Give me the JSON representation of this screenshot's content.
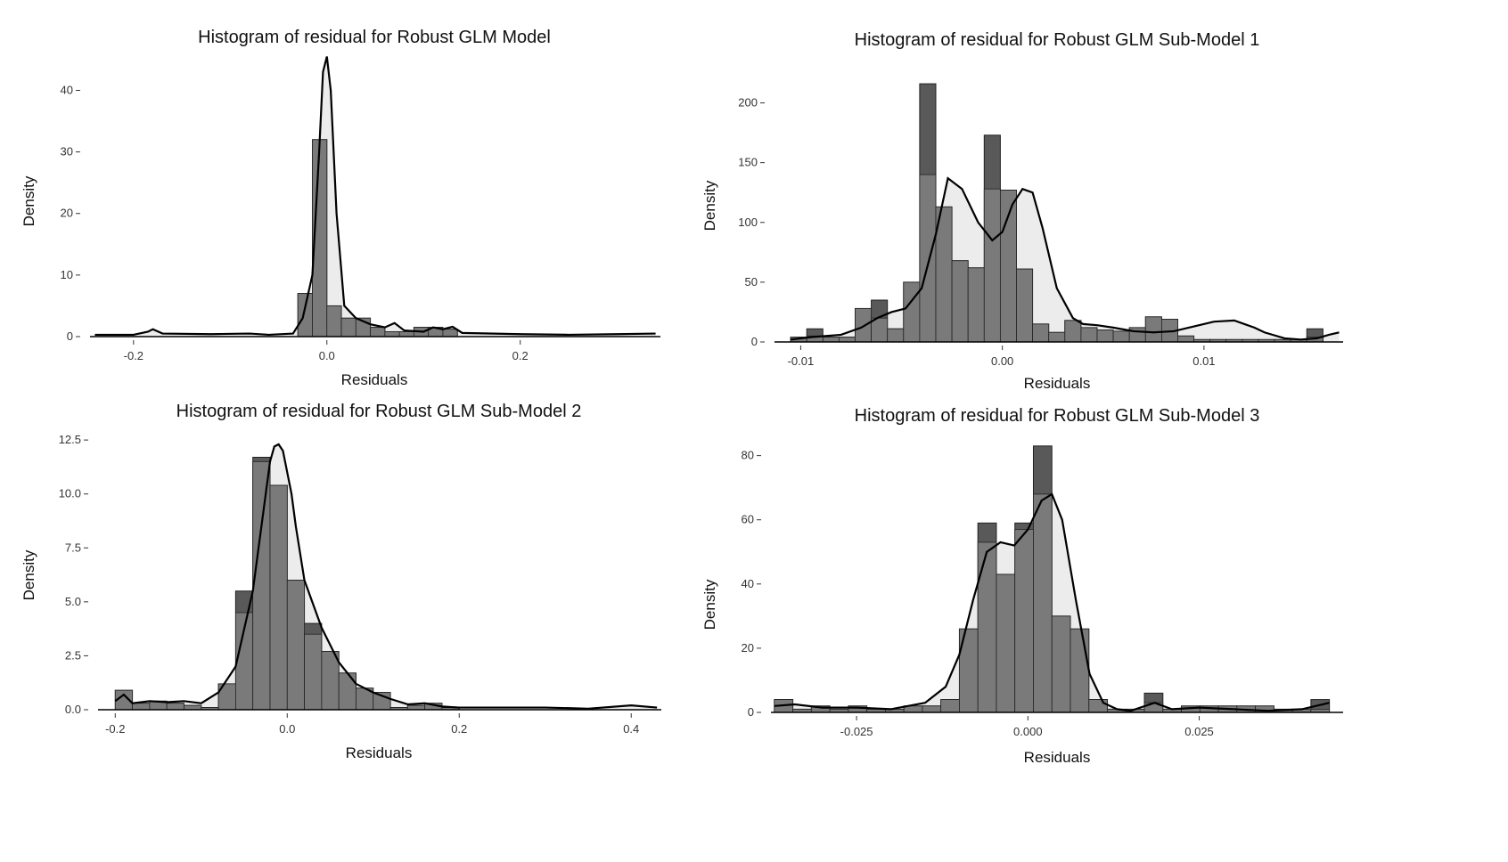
{
  "chart_data": [
    {
      "type": "bar",
      "title": "Histogram of residual for Robust GLM Model",
      "xlabel": "Residuals",
      "ylabel": "Density",
      "xlim": [
        -0.245,
        0.345
      ],
      "ylim": [
        0,
        46
      ],
      "xticks": [
        -0.2,
        0.0,
        0.2
      ],
      "xtick_labels": [
        "-0.2",
        "0.0",
        "0.2"
      ],
      "yticks": [
        0,
        10,
        20,
        30,
        40
      ],
      "ytick_labels": [
        "0",
        "10",
        "20",
        "30",
        "40"
      ],
      "grid": false,
      "bins": {
        "edges": [
          -0.03,
          -0.015,
          0.0,
          0.015,
          0.03,
          0.045,
          0.06,
          0.075,
          0.09,
          0.105,
          0.12,
          0.135
        ],
        "outer": [
          7,
          32,
          5,
          3,
          3,
          1.5,
          0.8,
          0.8,
          1.5,
          1.5,
          1.2
        ],
        "inner": [
          7,
          32,
          5,
          3,
          3,
          1.5,
          0.8,
          0.8,
          1.5,
          1.5,
          1.2
        ]
      },
      "density": {
        "x": [
          -0.24,
          -0.2,
          -0.185,
          -0.18,
          -0.17,
          -0.12,
          -0.08,
          -0.06,
          -0.035,
          -0.025,
          -0.015,
          -0.008,
          -0.004,
          0.0,
          0.004,
          0.01,
          0.018,
          0.03,
          0.045,
          0.06,
          0.07,
          0.08,
          0.1,
          0.11,
          0.12,
          0.13,
          0.14,
          0.2,
          0.25,
          0.3,
          0.34
        ],
        "y": [
          0.3,
          0.3,
          0.8,
          1.2,
          0.5,
          0.4,
          0.5,
          0.3,
          0.5,
          3,
          10,
          30,
          43,
          45.5,
          40,
          20,
          5,
          3,
          2,
          1.5,
          2.2,
          1,
          0.8,
          1.5,
          1.2,
          1.6,
          0.6,
          0.4,
          0.3,
          0.4,
          0.5
        ]
      }
    },
    {
      "type": "bar",
      "title": "Histogram of residual for Robust GLM Sub-Model 1",
      "xlabel": "Residuals",
      "ylabel": "Density",
      "xlim": [
        -0.0113,
        0.0169
      ],
      "ylim": [
        0,
        225
      ],
      "xticks": [
        -0.01,
        0.0,
        0.01
      ],
      "xtick_labels": [
        "-0.01",
        "0.00",
        "0.01"
      ],
      "yticks": [
        0,
        50,
        100,
        150,
        200
      ],
      "ytick_labels": [
        "0",
        "50",
        "100",
        "150",
        "200"
      ],
      "grid": false,
      "bins": {
        "edges": [
          -0.0105,
          -0.0097,
          -0.0089,
          -0.0081,
          -0.0073,
          -0.0065,
          -0.0057,
          -0.0049,
          -0.0041,
          -0.0033,
          -0.0025,
          -0.0017,
          -0.0009,
          -0.0001,
          0.0007,
          0.0015,
          0.0023,
          0.0031,
          0.0039,
          0.0047,
          0.0055,
          0.0063,
          0.0071,
          0.0079,
          0.0087,
          0.0095,
          0.0103,
          0.0111,
          0.0119,
          0.0127,
          0.0135,
          0.0143,
          0.0151,
          0.0159,
          0.0167
        ],
        "outer": [
          4,
          11,
          4,
          4,
          28,
          35,
          11,
          50,
          216,
          113,
          68,
          62,
          173,
          127,
          61,
          15,
          8,
          18,
          12,
          10,
          9,
          12,
          21,
          19,
          5,
          2,
          2,
          2,
          2,
          2,
          2,
          2,
          11
        ],
        "inner": [
          4,
          5,
          4,
          4,
          28,
          20,
          11,
          50,
          140,
          113,
          68,
          62,
          128,
          127,
          61,
          15,
          8,
          18,
          12,
          10,
          9,
          12,
          21,
          19,
          5,
          2,
          2,
          2,
          2,
          2,
          2,
          2,
          4
        ]
      },
      "density": {
        "x": [
          -0.0105,
          -0.0095,
          -0.008,
          -0.007,
          -0.0062,
          -0.0055,
          -0.0048,
          -0.004,
          -0.0033,
          -0.0027,
          -0.002,
          -0.0012,
          -0.0005,
          0.0,
          0.0005,
          0.001,
          0.0015,
          0.002,
          0.0027,
          0.0035,
          0.004,
          0.0047,
          0.0055,
          0.0065,
          0.0075,
          0.0085,
          0.0095,
          0.0105,
          0.0115,
          0.0125,
          0.013,
          0.014,
          0.0148,
          0.0156,
          0.0162,
          0.0167
        ],
        "y": [
          2,
          4,
          6,
          12,
          20,
          25,
          28,
          45,
          90,
          137,
          128,
          100,
          85,
          92,
          115,
          128,
          125,
          95,
          45,
          20,
          15,
          14,
          12,
          9,
          8,
          9,
          13,
          17,
          18,
          12,
          8,
          3,
          2,
          3,
          6,
          8
        ]
      }
    },
    {
      "type": "bar",
      "title": "Histogram of residual for Robust GLM Sub-Model 2",
      "xlabel": "Residuals",
      "ylabel": "Density",
      "xlim": [
        -0.22,
        0.435
      ],
      "ylim": [
        0,
        13
      ],
      "xticks": [
        -0.2,
        0.0,
        0.2,
        0.4
      ],
      "xtick_labels": [
        "-0.2",
        "0.0",
        "0.2",
        "0.4"
      ],
      "yticks": [
        0,
        2.5,
        5.0,
        7.5,
        10.0,
        12.5
      ],
      "ytick_labels": [
        "0.0",
        "2.5",
        "5.0",
        "7.5",
        "10.0",
        "12.5"
      ],
      "grid": false,
      "bins": {
        "edges": [
          -0.2,
          -0.18,
          -0.16,
          -0.14,
          -0.12,
          -0.1,
          -0.08,
          -0.06,
          -0.04,
          -0.02,
          0.0,
          0.02,
          0.04,
          0.06,
          0.08,
          0.1,
          0.12,
          0.14,
          0.16,
          0.18,
          0.2
        ],
        "outer": [
          0.9,
          0.3,
          0.4,
          0.3,
          0.2,
          0.1,
          1.2,
          5.5,
          11.7,
          10.4,
          6.0,
          4.0,
          2.7,
          1.7,
          1.0,
          0.8,
          0.1,
          0.2,
          0.3,
          0.1
        ],
        "inner": [
          0.9,
          0.3,
          0.4,
          0.3,
          0.2,
          0.1,
          1.2,
          4.5,
          11.5,
          10.4,
          6.0,
          3.5,
          2.7,
          1.7,
          1.0,
          0.8,
          0.1,
          0.2,
          0.3,
          0.1
        ]
      },
      "density": {
        "x": [
          -0.2,
          -0.19,
          -0.18,
          -0.16,
          -0.14,
          -0.12,
          -0.1,
          -0.08,
          -0.06,
          -0.04,
          -0.03,
          -0.02,
          -0.015,
          -0.01,
          -0.005,
          0.0,
          0.005,
          0.01,
          0.02,
          0.04,
          0.06,
          0.08,
          0.1,
          0.12,
          0.14,
          0.16,
          0.18,
          0.2,
          0.3,
          0.35,
          0.4,
          0.43
        ],
        "y": [
          0.4,
          0.7,
          0.3,
          0.4,
          0.35,
          0.4,
          0.3,
          0.8,
          2,
          5.5,
          8.5,
          11.5,
          12.2,
          12.3,
          12.0,
          11.0,
          10,
          8.5,
          6,
          3.8,
          2.2,
          1.2,
          0.8,
          0.5,
          0.25,
          0.3,
          0.15,
          0.1,
          0.1,
          0.05,
          0.2,
          0.1
        ]
      }
    },
    {
      "type": "bar",
      "title": "Histogram of residual for Robust GLM Sub-Model 3",
      "xlabel": "Residuals",
      "ylabel": "Density",
      "xlim": [
        -0.0375,
        0.046
      ],
      "ylim": [
        0,
        86
      ],
      "xticks": [
        -0.025,
        0.0,
        0.025
      ],
      "xtick_labels": [
        "-0.025",
        "0.000",
        "0.025"
      ],
      "yticks": [
        0,
        20,
        40,
        60,
        80
      ],
      "ytick_labels": [
        "0",
        "20",
        "40",
        "60",
        "80"
      ],
      "grid": false,
      "bins": {
        "edges": [
          -0.037,
          -0.0343,
          -0.0316,
          -0.0289,
          -0.0262,
          -0.0235,
          -0.0208,
          -0.0181,
          -0.0154,
          -0.0127,
          -0.01,
          -0.0073,
          -0.0046,
          -0.0019,
          0.0008,
          0.0035,
          0.0062,
          0.0089,
          0.0116,
          0.0143,
          0.017,
          0.0197,
          0.0224,
          0.0251,
          0.0278,
          0.0305,
          0.0332,
          0.0359,
          0.0386,
          0.0413,
          0.044
        ],
        "outer": [
          4,
          1,
          2,
          1,
          2,
          1,
          1,
          2,
          2,
          4,
          26,
          59,
          43,
          59,
          83,
          30,
          26,
          4,
          1,
          1,
          6,
          1,
          2,
          2,
          2,
          2,
          2,
          1,
          1,
          4
        ],
        "inner": [
          4,
          1,
          2,
          1,
          2,
          1,
          1,
          2,
          2,
          4,
          26,
          53,
          43,
          57,
          68,
          30,
          26,
          4,
          1,
          1,
          3,
          1,
          2,
          2,
          2,
          2,
          2,
          1,
          1,
          1
        ]
      },
      "density": {
        "x": [
          -0.037,
          -0.034,
          -0.03,
          -0.025,
          -0.02,
          -0.015,
          -0.012,
          -0.01,
          -0.008,
          -0.006,
          -0.004,
          -0.002,
          0.0,
          0.002,
          0.0035,
          0.005,
          0.007,
          0.009,
          0.011,
          0.013,
          0.015,
          0.0185,
          0.021,
          0.025,
          0.03,
          0.035,
          0.04,
          0.044
        ],
        "y": [
          2,
          2.5,
          1.5,
          1.5,
          1,
          3,
          8,
          18,
          35,
          50,
          53,
          52,
          57,
          66,
          68,
          60,
          35,
          12,
          3,
          1,
          0.5,
          3,
          1,
          1.5,
          1,
          0.5,
          1,
          3
        ]
      }
    }
  ]
}
